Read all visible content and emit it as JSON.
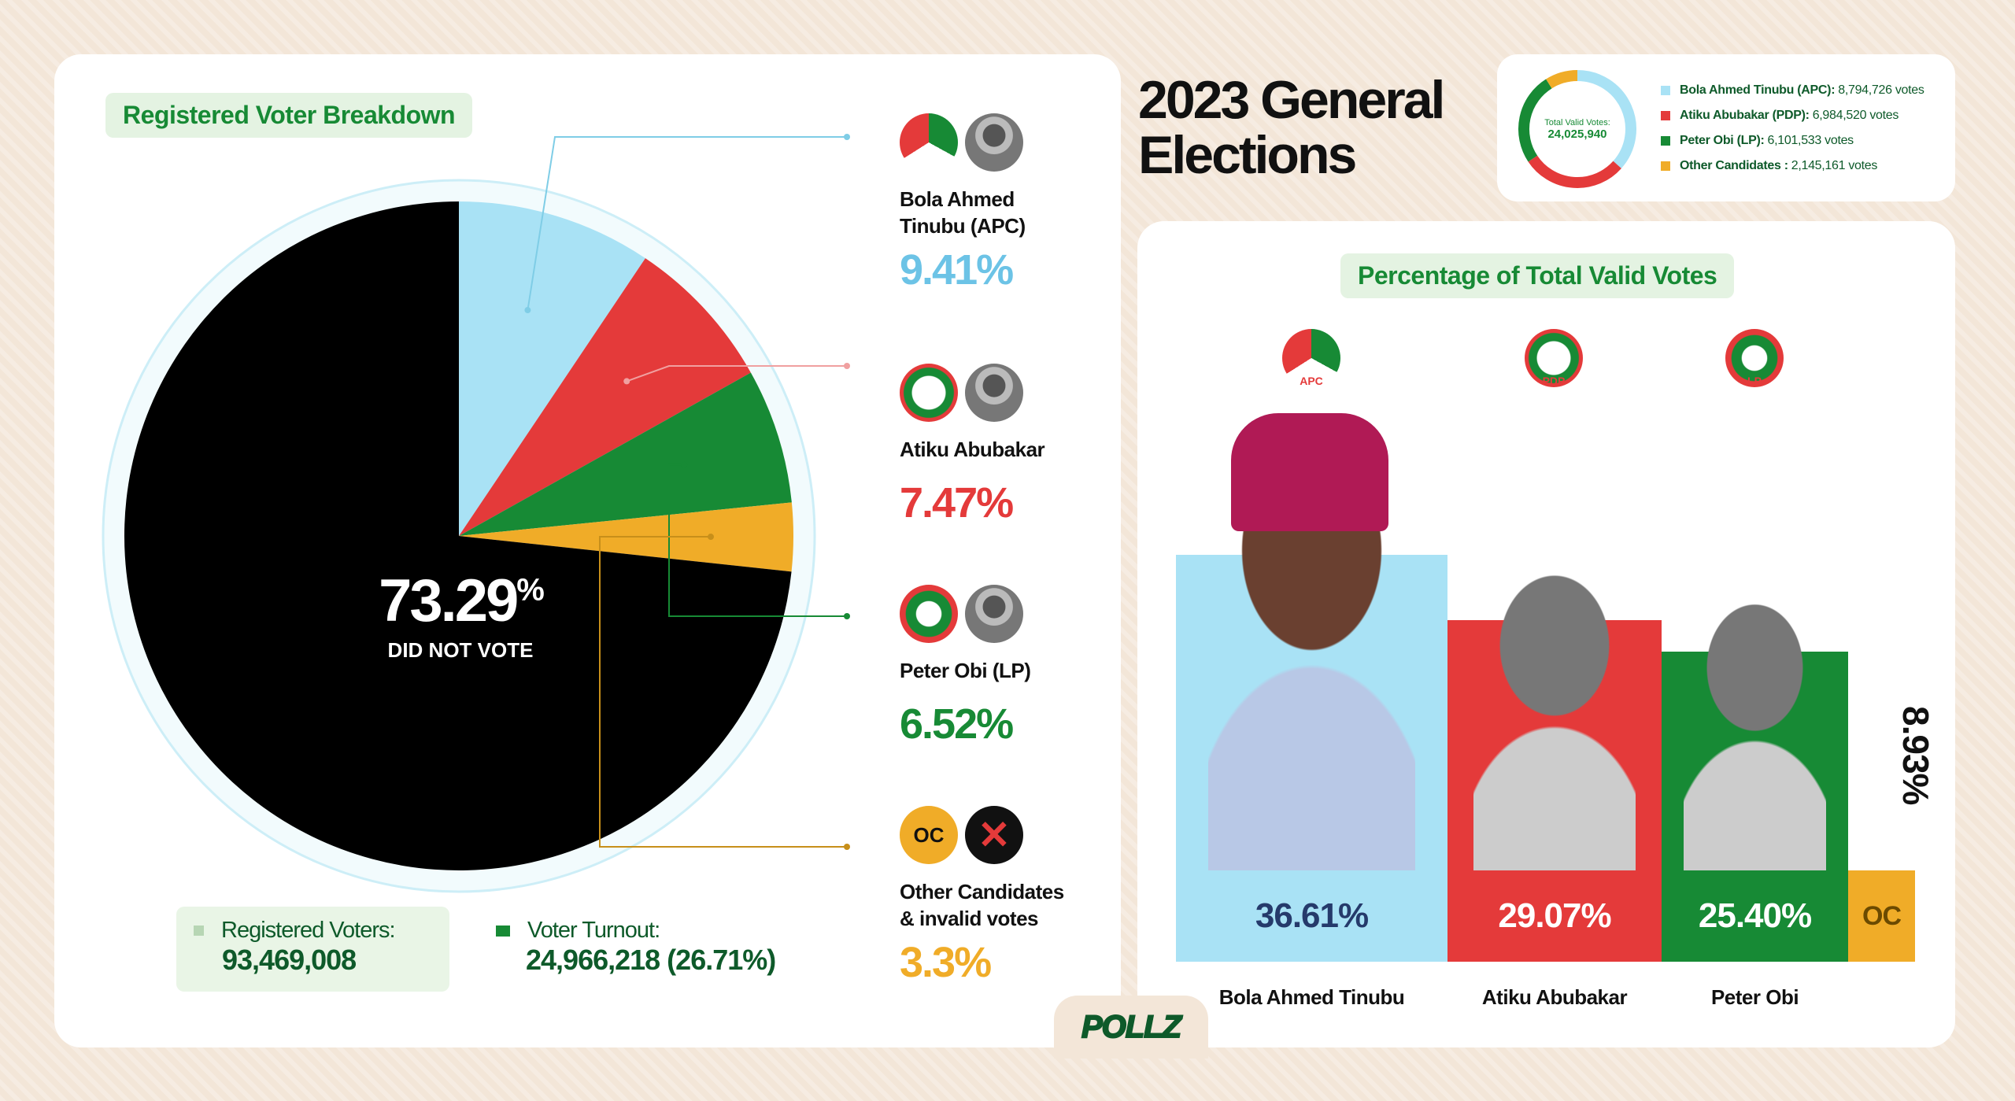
{
  "title": "2023 General Elections",
  "colors": {
    "apc": "#a9e2f5",
    "pdp": "#e43a3a",
    "lp": "#178a35",
    "other": "#f0ac28",
    "did_not_vote": "#000000",
    "green_text": "#0e5a2a"
  },
  "left": {
    "heading": "Registered Voter Breakdown",
    "center_pct": "73.29",
    "center_pct_sign": "%",
    "center_label": "DID NOT VOTE",
    "registered_label": "Registered Voters:",
    "registered_value": "93,469,008",
    "turnout_label": "Voter Turnout:",
    "turnout_value": "24,966,218 (26.71%)",
    "candidates": [
      {
        "name": "Bola Ahmed Tinubu (APC)",
        "pct": "9.41%",
        "icons": [
          "apc-logo",
          "tinubu-photo"
        ]
      },
      {
        "name": "Atiku Abubakar",
        "pct": "7.47%",
        "icons": [
          "pdp-logo",
          "atiku-photo"
        ]
      },
      {
        "name": "Peter Obi (LP)",
        "pct": "6.52%",
        "icons": [
          "lp-logo",
          "obi-photo"
        ]
      },
      {
        "name": "Other Candidates & invalid votes",
        "pct": "3.3%",
        "icons": [
          "oc-badge",
          "invalid-x"
        ],
        "badge": "OC"
      }
    ]
  },
  "legend": {
    "total_label": "Total Valid Votes:",
    "total_value": "24,025,940",
    "items": [
      {
        "label": "Bola Ahmed Tinubu (APC):",
        "value": "8,794,726 votes"
      },
      {
        "label": "Atiku Abubakar (PDP):",
        "value": "6,984,520 votes"
      },
      {
        "label": "Peter Obi (LP):",
        "value": "6,101,533 votes"
      },
      {
        "label": "Other Candidates :",
        "value": "2,145,161 votes"
      }
    ]
  },
  "right": {
    "heading": "Percentage of Total Valid Votes",
    "party_logos": [
      "APC",
      "PDP",
      "LP"
    ],
    "oc_label": "OC"
  },
  "brand": "POLLZ",
  "chart_data": [
    {
      "type": "pie",
      "title": "Registered Voter Breakdown",
      "categories": [
        "Bola Ahmed Tinubu (APC)",
        "Atiku Abubakar",
        "Peter Obi (LP)",
        "Other Candidates & invalid votes",
        "Did not vote"
      ],
      "values": [
        9.41,
        7.47,
        6.52,
        3.3,
        73.29
      ],
      "unit": "% of registered voters"
    },
    {
      "type": "pie",
      "title": "Total Valid Votes",
      "donut": true,
      "categories": [
        "Bola Ahmed Tinubu (APC)",
        "Atiku Abubakar (PDP)",
        "Peter Obi (LP)",
        "Other Candidates"
      ],
      "values": [
        8794726,
        6984520,
        6101533,
        2145161
      ]
    },
    {
      "type": "bar",
      "title": "Percentage of Total Valid Votes",
      "categories": [
        "Bola Ahmed Tinubu",
        "Atiku Abubakar",
        "Peter Obi",
        "OC"
      ],
      "values": [
        36.61,
        29.07,
        25.4,
        8.93
      ],
      "labels": [
        "36.61%",
        "29.07%",
        "25.40%",
        "8.93%"
      ]
    }
  ]
}
